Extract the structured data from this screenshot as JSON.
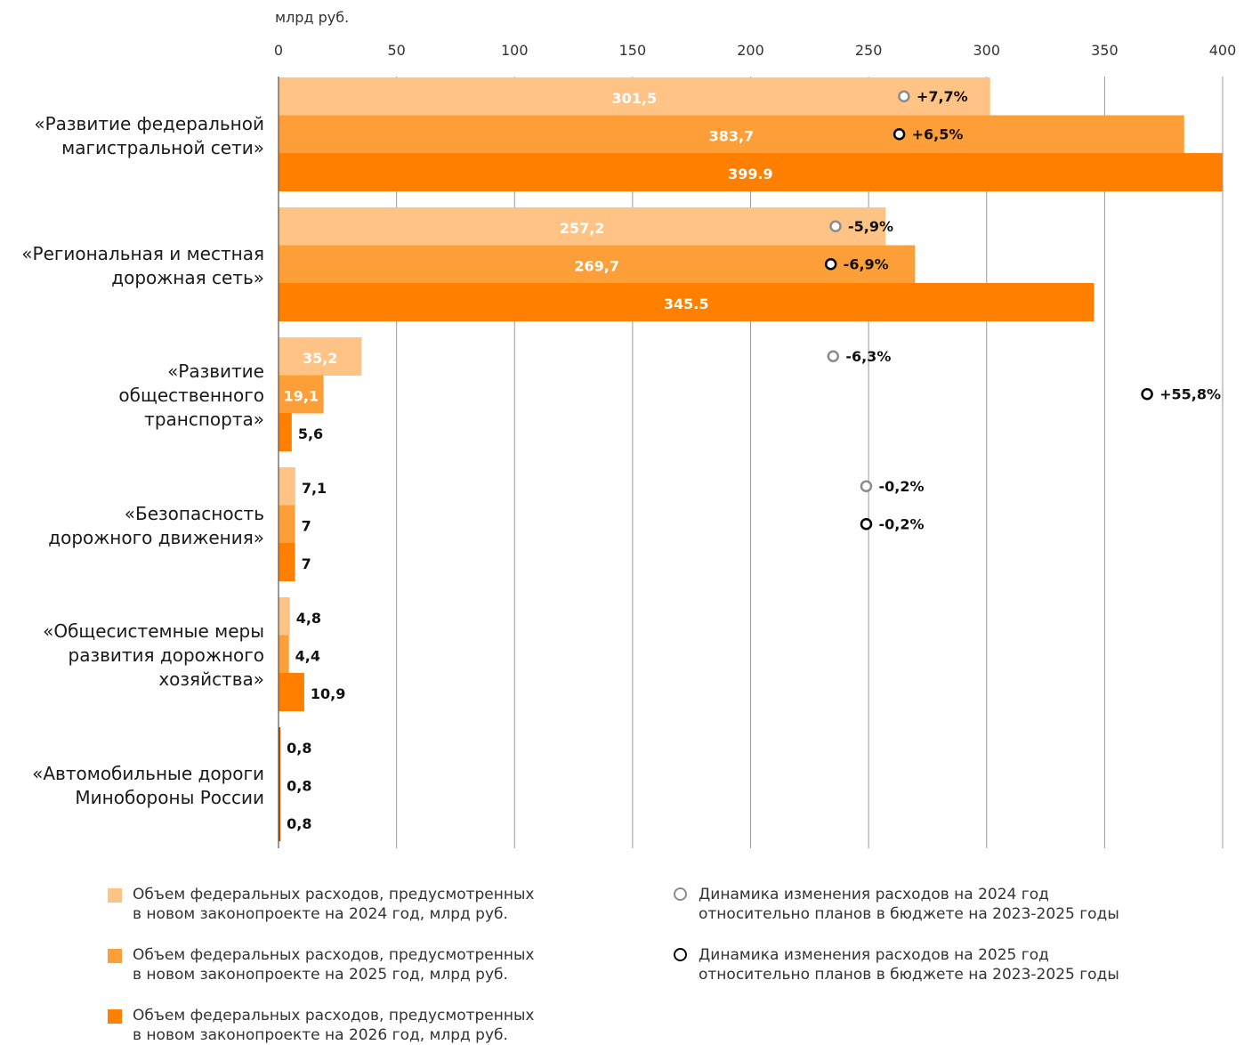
{
  "chart_data": {
    "type": "bar",
    "orientation": "horizontal",
    "unit_label": "млрд руб.",
    "xlim": [
      0,
      400
    ],
    "x_ticks": [
      0,
      50,
      100,
      150,
      200,
      250,
      300,
      350,
      400
    ],
    "grid": true,
    "categories": [
      "«Развитие федеральной\nмагистральной сети»",
      "«Региональная и местная\nдорожная сеть»",
      "«Развитие\nобщественного\nтранспорта»",
      "«Безопасность\nдорожного движения»",
      "«Общесистемные меры\nразвития дорожного\nхозяйства»",
      "«Автомобильные дороги\nМинобороны России"
    ],
    "series": [
      {
        "values": [
          301.5,
          257.2,
          35.2,
          7.1,
          4.8,
          0.8
        ],
        "value_labels": [
          "301,5",
          "257,2",
          "35,2",
          "7,1",
          "4,8",
          "0,8"
        ],
        "color": "#FEC385"
      },
      {
        "values": [
          383.7,
          269.7,
          19.1,
          7,
          4.4,
          0.8
        ],
        "value_labels": [
          "383,7",
          "269,7",
          "19,1",
          "7",
          "4,4",
          "0,8"
        ],
        "color": "#FD9F38"
      },
      {
        "values": [
          399.9,
          345.5,
          5.6,
          7,
          10.9,
          0.8
        ],
        "value_labels": [
          "399.9",
          "345.5",
          "5,6",
          "7",
          "10,9",
          "0,8"
        ],
        "color": "#FF8000"
      }
    ],
    "dynamics": [
      {
        "ring_color": "#8c8c8c",
        "points": [
          {
            "category": 0,
            "pos": 265,
            "label": "+7,7%"
          },
          {
            "category": 1,
            "pos": 236,
            "label": "-5,9%"
          },
          {
            "category": 2,
            "pos": 235,
            "label": "-6,3%"
          },
          {
            "category": 3,
            "pos": 249,
            "label": "-0,2%"
          }
        ]
      },
      {
        "ring_color": "#000000",
        "points": [
          {
            "category": 0,
            "pos": 263,
            "label": "+6,5%"
          },
          {
            "category": 1,
            "pos": 234,
            "label": "-6,9%"
          },
          {
            "category": 2,
            "pos": 368,
            "label": "+55,8%"
          },
          {
            "category": 3,
            "pos": 249,
            "label": "-0,2%"
          }
        ]
      }
    ],
    "legend": [
      {
        "kind": "swatch",
        "color": "#FEC385",
        "text": "Объем федеральных расходов, предусмотренных\nв новом законопроекте на 2024 год, млрд руб."
      },
      {
        "kind": "swatch",
        "color": "#FD9F38",
        "text": "Объем федеральных расходов, предусмотренных\nв новом законопроекте на 2025 год, млрд руб."
      },
      {
        "kind": "swatch",
        "color": "#FF8000",
        "text": "Объем федеральных расходов, предусмотренных\nв новом законопроекте на 2026 год, млрд руб."
      },
      {
        "kind": "ring",
        "color": "#8c8c8c",
        "text": "Динамика изменения расходов на 2024 год\nотносительно планов в бюджете на 2023-2025 годы"
      },
      {
        "kind": "ring",
        "color": "#000000",
        "text": "Динамика изменения расходов на 2025 год\nотносительно планов в бюджете на 2023-2025 годы"
      }
    ]
  }
}
